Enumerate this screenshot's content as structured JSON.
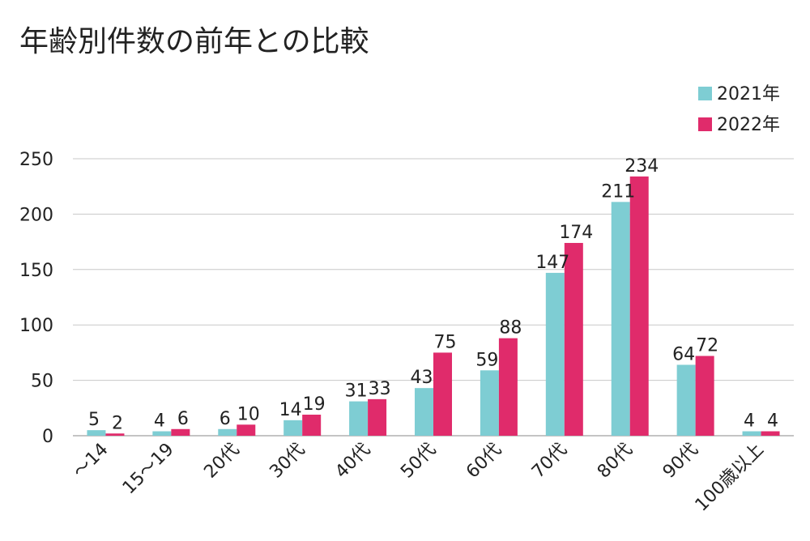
{
  "title": "年齢別件数の前年との比較",
  "chart_data": {
    "type": "bar",
    "title": "年齢別件数の前年との比較",
    "categories": [
      "～14",
      "15～19",
      "20代",
      "30代",
      "40代",
      "50代",
      "60代",
      "70代",
      "80代",
      "90代",
      "100歳以上"
    ],
    "series": [
      {
        "name": "2021年",
        "color": "#7ecdd3",
        "values": [
          5,
          4,
          6,
          14,
          31,
          43,
          59,
          147,
          211,
          64,
          4
        ]
      },
      {
        "name": "2022年",
        "color": "#e02b6b",
        "values": [
          2,
          6,
          10,
          19,
          33,
          75,
          88,
          174,
          234,
          72,
          4
        ]
      }
    ],
    "ylim": [
      0,
      250
    ],
    "yticks": [
      0,
      50,
      100,
      150,
      200,
      250
    ],
    "grid": true,
    "legend": "top-right",
    "data_labels": true
  }
}
